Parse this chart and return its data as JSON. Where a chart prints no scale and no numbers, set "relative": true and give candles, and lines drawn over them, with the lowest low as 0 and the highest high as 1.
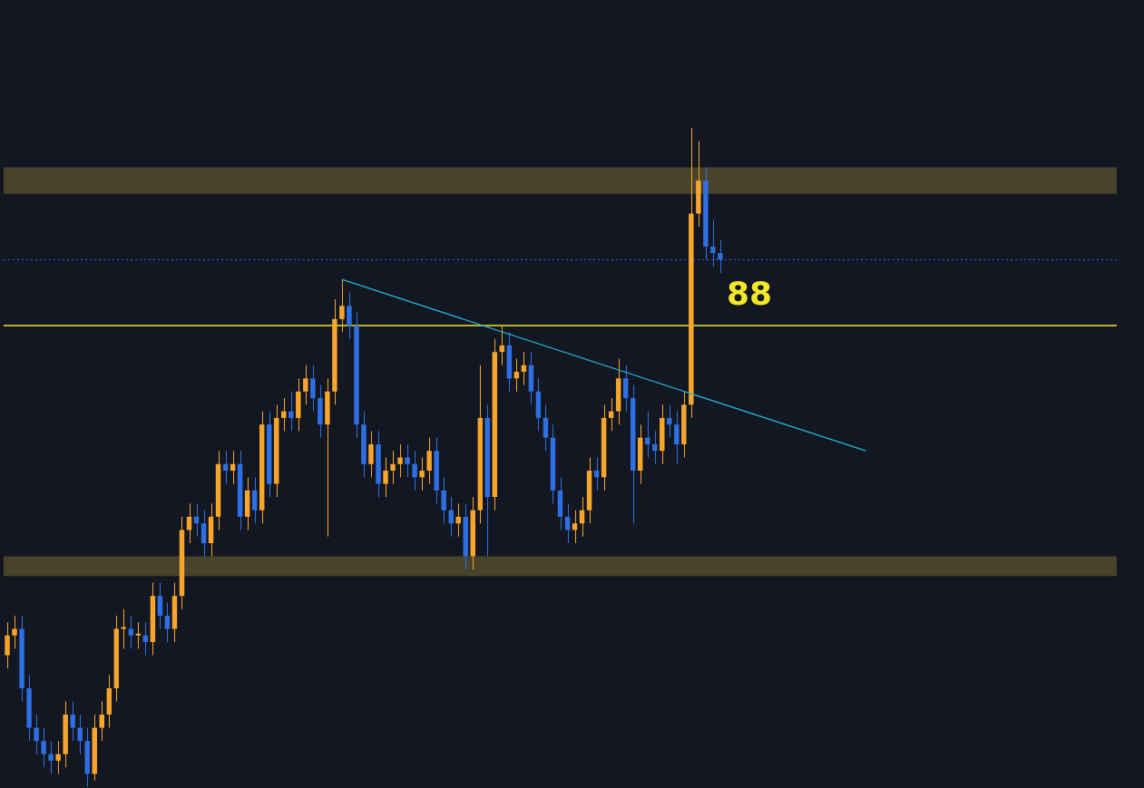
{
  "chart_data": {
    "type": "candlestick",
    "relative": true,
    "annotations": [
      "88"
    ],
    "colors": [
      "#f7a52c",
      "#f7a52c",
      "#2f6fe4",
      "#2f6fe4",
      "#2f6fe4",
      "#2f6fe4",
      "#2f6fe4",
      "#f7a52c",
      "#f7a52c",
      "#2f6fe4",
      "#2f6fe4",
      "#2f6fe4",
      "#f7a52c",
      "#f7a52c",
      "#f7a52c",
      "#f7a52c",
      "#f7a52c",
      "#2f6fe4",
      "#f7a52c",
      "#2f6fe4",
      "#f7a52c",
      "#2f6fe4",
      "#2f6fe4",
      "#f7a52c",
      "#f7a52c",
      "#f7a52c",
      "#2f6fe4",
      "#2f6fe4",
      "#f7a52c",
      "#f7a52c",
      "#2f6fe4",
      "#f7a52c",
      "#2f6fe4",
      "#f7a52c",
      "#2f6fe4",
      "#f7a52c",
      "#2f6fe4",
      "#f7a52c",
      "#f7a52c",
      "#2f6fe4",
      "#f7a52c",
      "#f7a52c",
      "#2f6fe4",
      "#2f6fe4",
      "#f7a52c",
      "#f7a52c",
      "#f7a52c",
      "#2f6fe4",
      "#2f6fe4",
      "#2f6fe4",
      "#f7a52c",
      "#2f6fe4",
      "#f7a52c",
      "#f7a52c",
      "#f7a52c",
      "#2f6fe4",
      "#2f6fe4",
      "#f7a52c",
      "#f7a52c",
      "#2f6fe4",
      "#2f6fe4",
      "#2f6fe4",
      "#f7a52c",
      "#2f6fe4",
      "#f7a52c",
      "#f7a52c",
      "#2f6fe4",
      "#f7a52c",
      "#f7a52c",
      "#2f6fe4",
      "#f7a52c",
      "#f7a52c",
      "#2f6fe4",
      "#2f6fe4",
      "#2f6fe4",
      "#2f6fe4",
      "#2f6fe4",
      "#2f6fe4",
      "#f7a52c",
      "#f7a52c",
      "#f7a52c",
      "#2f6fe4",
      "#f7a52c",
      "#f7a52c",
      "#f7a52c",
      "#2f6fe4",
      "#2f6fe4",
      "#f7a52c",
      "#2f6fe4",
      "#2f6fe4",
      "#f7a52c",
      "#2f6fe4",
      "#2f6fe4",
      "#f7a52c",
      "#f7a52c",
      "#f7a52c",
      "#2f6fe4",
      "#2f6fe4",
      "#2f6fe4",
      null,
      null,
      null,
      null,
      null,
      null,
      null,
      null,
      null,
      null,
      null,
      null,
      null,
      null,
      null,
      null,
      null,
      null,
      null,
      null,
      null,
      null,
      null,
      null,
      null,
      null,
      null,
      null,
      null,
      null,
      null,
      null,
      null,
      null,
      null,
      null,
      null,
      null,
      null,
      null,
      null,
      null,
      null,
      null,
      null,
      null,
      null,
      null,
      null,
      null,
      null,
      null,
      null,
      null
    ],
    "categories": [
      null,
      null,
      null,
      null,
      null,
      null,
      null,
      null,
      null,
      null,
      null,
      null,
      null,
      null,
      null,
      null,
      null,
      null,
      null,
      null,
      null,
      null,
      null,
      null,
      null,
      null,
      null,
      null,
      null,
      null,
      null,
      null,
      null,
      null,
      null,
      null,
      null,
      null,
      null,
      null,
      null,
      null,
      null,
      null,
      null,
      null,
      null,
      null,
      null,
      null,
      null,
      null,
      null,
      null,
      null,
      null,
      null,
      null,
      null,
      null,
      null,
      null,
      null,
      null,
      null,
      null,
      null,
      null,
      null,
      null,
      null,
      null,
      null,
      null,
      null,
      null,
      null,
      null,
      null,
      null,
      null,
      null,
      null,
      null,
      null,
      null,
      null,
      null,
      null,
      null,
      null,
      null,
      null,
      null,
      null,
      null,
      null,
      null,
      null,
      null,
      null,
      null,
      null,
      null,
      null,
      null,
      null,
      null,
      null,
      null,
      null,
      null,
      null,
      null,
      null,
      null,
      null,
      null,
      null,
      null,
      null,
      null,
      null,
      null,
      null,
      null,
      null,
      null,
      null,
      null,
      null,
      null,
      null,
      null,
      null,
      null,
      null,
      null,
      null,
      null,
      null,
      null,
      null,
      null,
      null,
      null,
      null,
      null,
      null,
      null,
      null,
      null,
      null
    ],
    "ohlc": [
      [
        0.2,
        0.25,
        0.18,
        0.23
      ],
      [
        0.23,
        0.26,
        0.21,
        0.24
      ],
      [
        0.24,
        0.26,
        0.13,
        0.15
      ],
      [
        0.15,
        0.17,
        0.07,
        0.09
      ],
      [
        0.09,
        0.11,
        0.05,
        0.07
      ],
      [
        0.07,
        0.09,
        0.03,
        0.05
      ],
      [
        0.05,
        0.07,
        0.02,
        0.04
      ],
      [
        0.04,
        0.07,
        0.02,
        0.05
      ],
      [
        0.05,
        0.13,
        0.03,
        0.11
      ],
      [
        0.11,
        0.13,
        0.07,
        0.09
      ],
      [
        0.09,
        0.11,
        0.05,
        0.07
      ],
      [
        0.07,
        0.09,
        0,
        0.02
      ],
      [
        0.02,
        0.11,
        0.01,
        0.09
      ],
      [
        0.09,
        0.13,
        0.07,
        0.11
      ],
      [
        0.11,
        0.17,
        0.09,
        0.15
      ],
      [
        0.15,
        0.26,
        0.13,
        0.24
      ],
      [
        0.24,
        0.27,
        0.21,
        0.24
      ],
      [
        0.24,
        0.26,
        0.21,
        0.23
      ],
      [
        0.23,
        0.25,
        0.21,
        0.23
      ],
      [
        0.23,
        0.25,
        0.2,
        0.22
      ],
      [
        0.22,
        0.31,
        0.2,
        0.29
      ],
      [
        0.29,
        0.31,
        0.24,
        0.26
      ],
      [
        0.26,
        0.28,
        0.22,
        0.24
      ],
      [
        0.24,
        0.31,
        0.22,
        0.29
      ],
      [
        0.29,
        0.41,
        0.27,
        0.39
      ],
      [
        0.39,
        0.43,
        0.37,
        0.41
      ],
      [
        0.41,
        0.43,
        0.38,
        0.4
      ],
      [
        0.4,
        0.42,
        0.35,
        0.37
      ],
      [
        0.37,
        0.43,
        0.35,
        0.41
      ],
      [
        0.41,
        0.51,
        0.39,
        0.49
      ],
      [
        0.49,
        0.51,
        0.46,
        0.48
      ],
      [
        0.48,
        0.51,
        0.46,
        0.49
      ],
      [
        0.49,
        0.51,
        0.39,
        0.41
      ],
      [
        0.41,
        0.47,
        0.39,
        0.45
      ],
      [
        0.45,
        0.47,
        0.4,
        0.42
      ],
      [
        0.42,
        0.57,
        0.4,
        0.55
      ],
      [
        0.55,
        0.57,
        0.44,
        0.46
      ],
      [
        0.46,
        0.58,
        0.44,
        0.56
      ],
      [
        0.56,
        0.59,
        0.54,
        0.57
      ],
      [
        0.57,
        0.6,
        0.54,
        0.56
      ],
      [
        0.56,
        0.62,
        0.54,
        0.6
      ],
      [
        0.6,
        0.64,
        0.58,
        0.62
      ],
      [
        0.62,
        0.64,
        0.57,
        0.59
      ],
      [
        0.59,
        0.61,
        0.53,
        0.55
      ],
      [
        0.55,
        0.62,
        0.38,
        0.6
      ],
      [
        0.6,
        0.74,
        0.58,
        0.71
      ],
      [
        0.71,
        0.77,
        0.69,
        0.73
      ],
      [
        0.73,
        0.75,
        0.68,
        0.7
      ],
      [
        0.7,
        0.72,
        0.53,
        0.55
      ],
      [
        0.55,
        0.57,
        0.47,
        0.49
      ],
      [
        0.49,
        0.54,
        0.47,
        0.52
      ],
      [
        0.52,
        0.54,
        0.44,
        0.46
      ],
      [
        0.46,
        0.5,
        0.44,
        0.48
      ],
      [
        0.48,
        0.51,
        0.46,
        0.49
      ],
      [
        0.49,
        0.52,
        0.47,
        0.5
      ],
      [
        0.5,
        0.52,
        0.47,
        0.49
      ],
      [
        0.49,
        0.51,
        0.45,
        0.47
      ],
      [
        0.47,
        0.5,
        0.45,
        0.48
      ],
      [
        0.48,
        0.53,
        0.46,
        0.51
      ],
      [
        0.51,
        0.53,
        0.43,
        0.45
      ],
      [
        0.45,
        0.47,
        0.4,
        0.42
      ],
      [
        0.42,
        0.44,
        0.38,
        0.4
      ],
      [
        0.4,
        0.43,
        0.38,
        0.41
      ],
      [
        0.41,
        0.43,
        0.33,
        0.35
      ],
      [
        0.35,
        0.44,
        0.33,
        0.42
      ],
      [
        0.42,
        0.64,
        0.4,
        0.56
      ],
      [
        0.56,
        0.58,
        0.35,
        0.44
      ],
      [
        0.44,
        0.68,
        0.42,
        0.66
      ],
      [
        0.66,
        0.7,
        0.64,
        0.67
      ],
      [
        0.67,
        0.69,
        0.6,
        0.62
      ],
      [
        0.62,
        0.65,
        0.6,
        0.63
      ],
      [
        0.63,
        0.66,
        0.61,
        0.64
      ],
      [
        0.64,
        0.66,
        0.58,
        0.6
      ],
      [
        0.6,
        0.62,
        0.54,
        0.56
      ],
      [
        0.56,
        0.58,
        0.51,
        0.53
      ],
      [
        0.53,
        0.55,
        0.43,
        0.45
      ],
      [
        0.45,
        0.47,
        0.39,
        0.41
      ],
      [
        0.41,
        0.43,
        0.37,
        0.39
      ],
      [
        0.39,
        0.42,
        0.37,
        0.4
      ],
      [
        0.4,
        0.44,
        0.38,
        0.42
      ],
      [
        0.42,
        0.5,
        0.4,
        0.48
      ],
      [
        0.48,
        0.5,
        0.45,
        0.47
      ],
      [
        0.47,
        0.58,
        0.45,
        0.56
      ],
      [
        0.56,
        0.59,
        0.54,
        0.57
      ],
      [
        0.57,
        0.65,
        0.55,
        0.62
      ],
      [
        0.62,
        0.64,
        0.57,
        0.59
      ],
      [
        0.59,
        0.61,
        0.4,
        0.48
      ],
      [
        0.48,
        0.55,
        0.46,
        0.53
      ],
      [
        0.53,
        0.57,
        0.5,
        0.52
      ],
      [
        0.52,
        0.54,
        0.49,
        0.51
      ],
      [
        0.51,
        0.58,
        0.49,
        0.56
      ],
      [
        0.56,
        0.58,
        0.53,
        0.55
      ],
      [
        0.55,
        0.57,
        0.49,
        0.52
      ],
      [
        0.52,
        0.6,
        0.5,
        0.58
      ],
      [
        0.58,
        1,
        0.56,
        0.87
      ],
      [
        0.87,
        0.98,
        0.85,
        0.92
      ],
      [
        0.92,
        0.94,
        0.8,
        0.82
      ],
      [
        0.82,
        0.86,
        0.79,
        0.81
      ],
      [
        0.81,
        0.83,
        0.78,
        0.8
      ],
      null,
      null,
      null,
      null,
      null,
      null,
      null,
      null,
      null,
      null,
      null,
      null,
      null,
      null,
      null,
      null,
      null,
      null,
      null,
      null,
      null,
      null,
      null,
      null,
      null,
      null,
      null,
      null,
      null,
      null,
      null,
      null,
      null,
      null,
      null,
      null,
      null,
      null,
      null,
      null,
      null,
      null,
      null,
      null,
      null,
      null,
      null,
      null,
      null,
      null,
      null,
      null,
      null,
      null
    ],
    "series": [
      {
        "type": "line",
        "color": "#22b4d8",
        "values": [
          null,
          null,
          null,
          null,
          null,
          null,
          null,
          null,
          null,
          null,
          null,
          null,
          null,
          null,
          null,
          null,
          null,
          null,
          null,
          null,
          null,
          null,
          null,
          null,
          null,
          null,
          null,
          null,
          null,
          null,
          null,
          null,
          null,
          null,
          null,
          null,
          null,
          null,
          null,
          null,
          null,
          null,
          null,
          null,
          null,
          null,
          0.77,
          null,
          null,
          null,
          null,
          null,
          null,
          null,
          null,
          null,
          null,
          null,
          null,
          null,
          null,
          null,
          null,
          null,
          null,
          null,
          null,
          null,
          null,
          null,
          null,
          null,
          null,
          null,
          null,
          null,
          null,
          null,
          null,
          null,
          null,
          null,
          null,
          null,
          null,
          null,
          null,
          null,
          null,
          null,
          null,
          null,
          null,
          null,
          null,
          null,
          null,
          null,
          null,
          null,
          null,
          null,
          null,
          null,
          null,
          null,
          null,
          null,
          null,
          null,
          null,
          null,
          null,
          null,
          null,
          null,
          null,
          null,
          0.51,
          null,
          null,
          null,
          null,
          null,
          null,
          null,
          null,
          null,
          null,
          null,
          null,
          null,
          null,
          null,
          null,
          null,
          null,
          null,
          null,
          null,
          null,
          null,
          null,
          null,
          null,
          null,
          null,
          null,
          null,
          null,
          null,
          null,
          null
        ]
      }
    ],
    "ref_lines": [
      {
        "axis": "y",
        "value": 0.7,
        "color": "#f5e72a"
      },
      {
        "axis": "y",
        "value": 0.8,
        "color": "#2962ff",
        "line_style": "dotted"
      }
    ],
    "bands": [
      {
        "axis": "y",
        "from": 0.9,
        "to": 0.94,
        "color": "#48432a"
      },
      {
        "axis": "y",
        "from": 0.32,
        "to": 0.35,
        "color": "#48432a"
      }
    ],
    "legend": false
  }
}
